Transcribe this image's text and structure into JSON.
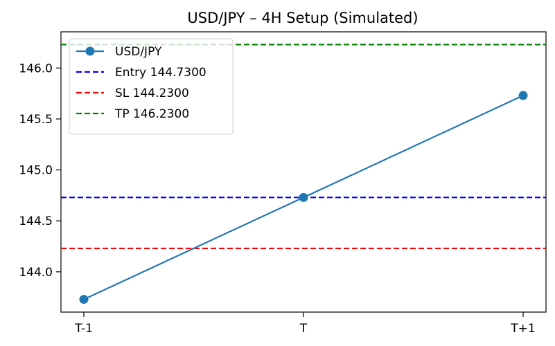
{
  "chart_data": {
    "type": "line",
    "title": "USD/JPY – 4H Setup (Simulated)",
    "xlabel": "",
    "ylabel": "",
    "categories": [
      "T-1",
      "T",
      "T+1"
    ],
    "series": [
      {
        "name": "USD/JPY",
        "values": [
          143.73,
          144.73,
          145.73
        ],
        "color": "#1f77b4",
        "marker": "circle"
      }
    ],
    "hlines": [
      {
        "name": "Entry 144.7300",
        "value": 144.73,
        "color": "#0000ff",
        "style": "dashed"
      },
      {
        "name": "SL 144.2300",
        "value": 144.23,
        "color": "#ff0000",
        "style": "dashed"
      },
      {
        "name": "TP 146.2300",
        "value": 146.23,
        "color": "#008000",
        "style": "dashed"
      }
    ],
    "yticks": [
      "144.0",
      "144.5",
      "145.0",
      "145.5",
      "146.0"
    ],
    "ylim": [
      143.605,
      146.355
    ],
    "grid": false,
    "legend_position": "upper-left"
  }
}
